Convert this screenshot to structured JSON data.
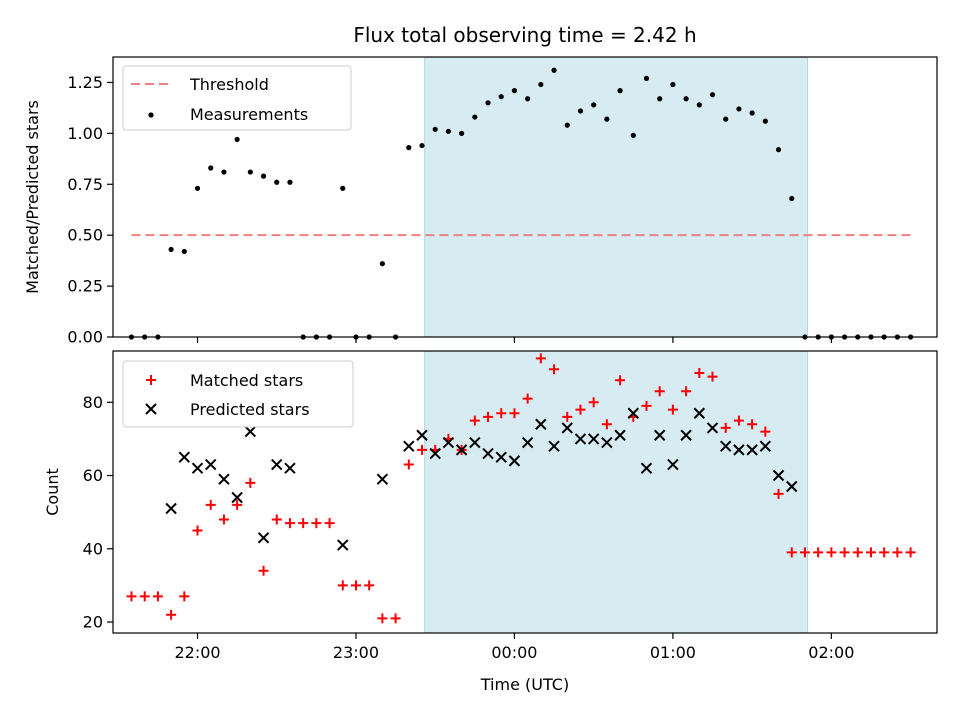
{
  "chart_data": [
    {
      "type": "scatter",
      "title": "Flux total observing time = 2.42 h",
      "xlabel": "",
      "ylabel": "Matched/Predicted stars",
      "ylim": [
        0,
        1.375
      ],
      "yticks": [
        0.0,
        0.25,
        0.5,
        0.75,
        1.0,
        1.25
      ],
      "ytick_labels": [
        "0.00",
        "0.25",
        "0.50",
        "0.75",
        "1.00",
        "1.25"
      ],
      "xlim": [
        "21:28",
        "02:40"
      ],
      "xticks": [
        "22:00",
        "23:00",
        "00:00",
        "01:00",
        "02:00"
      ],
      "shaded_span": [
        "23:26",
        "01:51"
      ],
      "threshold": {
        "name": "Threshold",
        "value": 0.5,
        "x_range": [
          "21:35",
          "02:30"
        ],
        "color": "#f08080"
      },
      "legend": [
        "Threshold",
        "Measurements"
      ],
      "legend_position": "top-left",
      "series": [
        {
          "name": "Measurements",
          "color": "#000000",
          "marker": "dot",
          "x": [
            "21:35",
            "21:40",
            "21:45",
            "21:50",
            "21:55",
            "22:00",
            "22:05",
            "22:10",
            "22:15",
            "22:20",
            "22:25",
            "22:30",
            "22:35",
            "22:40",
            "22:45",
            "22:50",
            "22:55",
            "23:00",
            "23:05",
            "23:10",
            "23:15",
            "23:20",
            "23:25",
            "23:30",
            "23:35",
            "23:40",
            "23:45",
            "23:50",
            "23:55",
            "00:00",
            "00:05",
            "00:10",
            "00:15",
            "00:20",
            "00:25",
            "00:30",
            "00:35",
            "00:40",
            "00:45",
            "00:50",
            "00:55",
            "01:00",
            "01:05",
            "01:10",
            "01:15",
            "01:20",
            "01:25",
            "01:30",
            "01:35",
            "01:40",
            "01:45",
            "01:50",
            "01:55",
            "02:00",
            "02:05",
            "02:10",
            "02:15",
            "02:20",
            "02:25",
            "02:30"
          ],
          "y": [
            0,
            0,
            0,
            0.43,
            0.42,
            0.73,
            0.83,
            0.81,
            0.97,
            0.81,
            0.79,
            0.76,
            0.76,
            0,
            0,
            0,
            0.73,
            0,
            0,
            0.36,
            0,
            0.93,
            0.94,
            1.02,
            1.01,
            1.0,
            1.08,
            1.15,
            1.18,
            1.21,
            1.17,
            1.24,
            1.31,
            1.04,
            1.11,
            1.14,
            1.07,
            1.21,
            0.99,
            1.27,
            1.17,
            1.24,
            1.17,
            1.14,
            1.19,
            1.07,
            1.12,
            1.1,
            1.06,
            0.92,
            0.68,
            0,
            0,
            0,
            0,
            0,
            0,
            0,
            0,
            0
          ]
        }
      ]
    },
    {
      "type": "scatter",
      "title": "",
      "xlabel": "Time (UTC)",
      "ylabel": "Count",
      "ylim": [
        17,
        94
      ],
      "yticks": [
        20,
        40,
        60,
        80
      ],
      "ytick_labels": [
        "20",
        "40",
        "60",
        "80"
      ],
      "xlim": [
        "21:28",
        "02:40"
      ],
      "xticks": [
        "22:00",
        "23:00",
        "00:00",
        "01:00",
        "02:00"
      ],
      "shaded_span": [
        "23:26",
        "01:51"
      ],
      "legend": [
        "Matched stars",
        "Predicted stars"
      ],
      "legend_position": "top-left",
      "series": [
        {
          "name": "Matched stars",
          "color": "#ff0000",
          "marker": "plus",
          "x": [
            "21:35",
            "21:40",
            "21:45",
            "21:50",
            "21:55",
            "22:00",
            "22:05",
            "22:10",
            "22:15",
            "22:20",
            "22:25",
            "22:30",
            "22:35",
            "22:40",
            "22:45",
            "22:50",
            "22:55",
            "23:00",
            "23:05",
            "23:10",
            "23:15",
            "23:20",
            "23:25",
            "23:30",
            "23:35",
            "23:40",
            "23:45",
            "23:50",
            "23:55",
            "00:00",
            "00:05",
            "00:10",
            "00:15",
            "00:20",
            "00:25",
            "00:30",
            "00:35",
            "00:40",
            "00:45",
            "00:50",
            "00:55",
            "01:00",
            "01:05",
            "01:10",
            "01:15",
            "01:20",
            "01:25",
            "01:30",
            "01:35",
            "01:40",
            "01:45",
            "01:50",
            "01:55",
            "02:00",
            "02:05",
            "02:10",
            "02:15",
            "02:20",
            "02:25",
            "02:30"
          ],
          "y": [
            27,
            27,
            27,
            22,
            27,
            45,
            52,
            48,
            52,
            58,
            34,
            48,
            47,
            47,
            47,
            47,
            30,
            30,
            30,
            21,
            21,
            63,
            67,
            67,
            70,
            67,
            75,
            76,
            77,
            77,
            81,
            92,
            89,
            76,
            78,
            80,
            74,
            86,
            76,
            79,
            83,
            78,
            83,
            88,
            87,
            73,
            75,
            74,
            72,
            55,
            39,
            39,
            39,
            39,
            39,
            39,
            39,
            39,
            39,
            39
          ]
        },
        {
          "name": "Predicted stars",
          "color": "#000000",
          "marker": "x",
          "x": [
            "21:50",
            "21:55",
            "22:00",
            "22:05",
            "22:10",
            "22:15",
            "22:20",
            "22:25",
            "22:30",
            "22:35",
            "22:55",
            "23:10",
            "23:20",
            "23:25",
            "23:30",
            "23:35",
            "23:40",
            "23:45",
            "23:50",
            "23:55",
            "00:00",
            "00:05",
            "00:10",
            "00:15",
            "00:20",
            "00:25",
            "00:30",
            "00:35",
            "00:40",
            "00:45",
            "00:50",
            "00:55",
            "01:00",
            "01:05",
            "01:10",
            "01:15",
            "01:20",
            "01:25",
            "01:30",
            "01:35",
            "01:40",
            "01:45"
          ],
          "y": [
            51,
            65,
            62,
            63,
            59,
            54,
            72,
            43,
            63,
            62,
            41,
            59,
            68,
            71,
            66,
            69,
            67,
            69,
            66,
            65,
            64,
            69,
            74,
            68,
            73,
            70,
            70,
            69,
            71,
            77,
            62,
            71,
            63,
            71,
            77,
            73,
            68,
            67,
            67,
            68,
            60,
            57
          ]
        }
      ]
    }
  ]
}
